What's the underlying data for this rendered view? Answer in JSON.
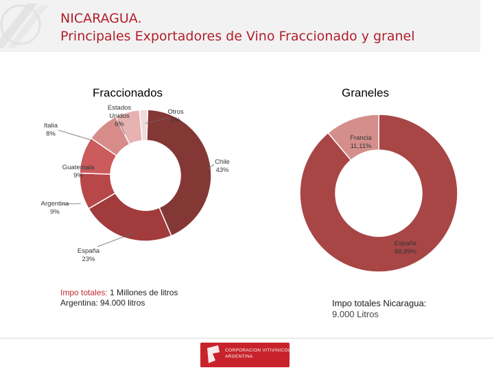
{
  "title_line1": "NICARAGUA.",
  "title_line2": "Principales Exportadores de Vino Fraccionado y granel",
  "footer": {
    "logo_line1": "CORPORACION VITIVINICOLA",
    "logo_line2": "ARGENTINA"
  },
  "colors": {
    "title": "#b01e2a",
    "chile": "#843836",
    "espana_f": "#a23b3c",
    "argentina": "#b8474a",
    "guatemala": "#cb5b5c",
    "italia": "#d88c8a",
    "estados_unidos": "#e6b3b2",
    "otros": "#f1dada",
    "espana_g": "#a84646",
    "francia": "#d48f8d"
  },
  "chart_data": [
    {
      "type": "pie",
      "title": "Fraccionados",
      "slices": [
        {
          "label": "Chile",
          "value": 43,
          "value_label": "43%"
        },
        {
          "label": "España",
          "value": 23,
          "value_label": "23%"
        },
        {
          "label": "Argentina",
          "value": 9,
          "value_label": "9%"
        },
        {
          "label": "Guatemala",
          "value": 9,
          "value_label": "9%"
        },
        {
          "label": "Italia",
          "value": 8,
          "value_label": "8%"
        },
        {
          "label": "Estados Unidos",
          "value": 6,
          "value_label": "6%"
        },
        {
          "label": "Otros",
          "value": 2,
          "value_label": "2%"
        }
      ],
      "note": {
        "line1_prefix": "Impo totales:",
        "line1_rest": " 1 Millones de litros",
        "line2": "Argentina: 94.000 litros"
      }
    },
    {
      "type": "pie",
      "title": "Graneles",
      "slices": [
        {
          "label": "España",
          "value": 88.89,
          "value_label": "88,89%"
        },
        {
          "label": "Francia",
          "value": 11.11,
          "value_label": "11,11%"
        }
      ],
      "note": {
        "line1": "Impo totales Nicaragua:",
        "line2": "9.000 Litros"
      }
    }
  ]
}
